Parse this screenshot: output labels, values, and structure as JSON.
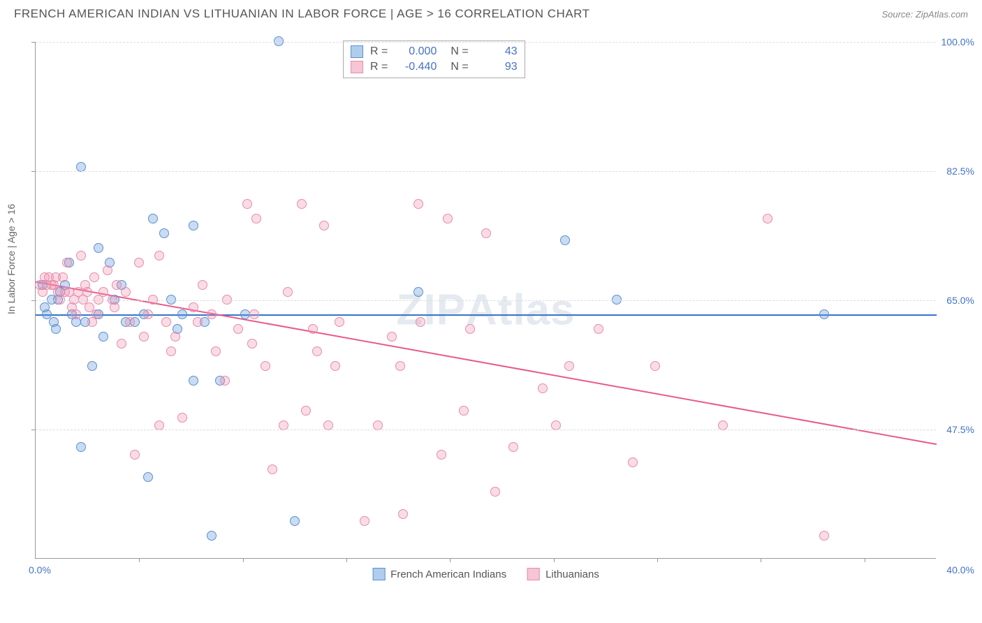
{
  "title": "FRENCH AMERICAN INDIAN VS LITHUANIAN IN LABOR FORCE | AGE > 16 CORRELATION CHART",
  "source": "Source: ZipAtlas.com",
  "watermark_a": "ZIP",
  "watermark_b": "Atlas",
  "chart": {
    "type": "scatter",
    "y_label": "In Labor Force | Age > 16",
    "xlim": [
      0.0,
      40.0
    ],
    "ylim": [
      30.0,
      100.0
    ],
    "x_min_label": "0.0%",
    "x_max_label": "40.0%",
    "y_ticks": [
      47.5,
      65.0,
      82.5,
      100.0
    ],
    "y_tick_labels": [
      "47.5%",
      "65.0%",
      "82.5%",
      "100.0%"
    ],
    "x_tick_positions": [
      4.6,
      9.2,
      13.8,
      18.4,
      23.0,
      27.6,
      32.2,
      36.8
    ],
    "background_color": "#ffffff",
    "grid_color": "#dcdcdc",
    "marker_size": 14,
    "series": [
      {
        "name": "French American Indians",
        "color_fill": "rgba(100,155,220,0.35)",
        "color_stroke": "#5b8fd0",
        "r": "0.000",
        "n": "43",
        "trend": {
          "y_at_xmin": 63.0,
          "y_at_xmax": 63.0,
          "color": "#2f6fc7",
          "width": 2
        },
        "points": [
          [
            0.3,
            67
          ],
          [
            0.4,
            64
          ],
          [
            0.5,
            63
          ],
          [
            0.7,
            65
          ],
          [
            0.8,
            62
          ],
          [
            0.9,
            61
          ],
          [
            1.0,
            65
          ],
          [
            1.1,
            66
          ],
          [
            1.3,
            67
          ],
          [
            1.5,
            70
          ],
          [
            1.6,
            63
          ],
          [
            1.8,
            62
          ],
          [
            2.0,
            83
          ],
          [
            2.0,
            45
          ],
          [
            2.2,
            62
          ],
          [
            2.5,
            56
          ],
          [
            2.8,
            72
          ],
          [
            2.8,
            63
          ],
          [
            3.0,
            60
          ],
          [
            3.3,
            70
          ],
          [
            3.5,
            65
          ],
          [
            3.8,
            67
          ],
          [
            4.0,
            62
          ],
          [
            4.4,
            62
          ],
          [
            4.8,
            63
          ],
          [
            5.0,
            41
          ],
          [
            5.2,
            76
          ],
          [
            5.7,
            74
          ],
          [
            6.0,
            65
          ],
          [
            6.3,
            61
          ],
          [
            6.5,
            63
          ],
          [
            7.0,
            54
          ],
          [
            7.0,
            75
          ],
          [
            7.5,
            62
          ],
          [
            7.8,
            33
          ],
          [
            8.2,
            54
          ],
          [
            9.3,
            63
          ],
          [
            10.8,
            100
          ],
          [
            11.5,
            35
          ],
          [
            17.0,
            66
          ],
          [
            23.5,
            73
          ],
          [
            25.8,
            65
          ],
          [
            35.0,
            63
          ]
        ]
      },
      {
        "name": "Lithuanians",
        "color_fill": "rgba(240,140,170,0.3)",
        "color_stroke": "#e78bac",
        "r": "-0.440",
        "n": "93",
        "trend": {
          "y_at_xmin": 67.5,
          "y_at_xmax": 45.5,
          "color": "#e85a8a",
          "width": 2
        },
        "points": [
          [
            0.2,
            67
          ],
          [
            0.3,
            66
          ],
          [
            0.4,
            68
          ],
          [
            0.5,
            67
          ],
          [
            0.6,
            68
          ],
          [
            0.7,
            67
          ],
          [
            0.8,
            67
          ],
          [
            0.9,
            68
          ],
          [
            1.0,
            66
          ],
          [
            1.1,
            65
          ],
          [
            1.2,
            68
          ],
          [
            1.3,
            66
          ],
          [
            1.4,
            70
          ],
          [
            1.5,
            66
          ],
          [
            1.6,
            64
          ],
          [
            1.7,
            65
          ],
          [
            1.8,
            63
          ],
          [
            1.9,
            66
          ],
          [
            2.0,
            71
          ],
          [
            2.1,
            65
          ],
          [
            2.2,
            67
          ],
          [
            2.3,
            66
          ],
          [
            2.4,
            64
          ],
          [
            2.5,
            62
          ],
          [
            2.6,
            68
          ],
          [
            2.7,
            63
          ],
          [
            2.8,
            65
          ],
          [
            3.0,
            66
          ],
          [
            3.2,
            69
          ],
          [
            3.4,
            65
          ],
          [
            3.5,
            64
          ],
          [
            3.6,
            67
          ],
          [
            3.8,
            59
          ],
          [
            4.0,
            66
          ],
          [
            4.2,
            62
          ],
          [
            4.4,
            44
          ],
          [
            4.6,
            70
          ],
          [
            4.8,
            60
          ],
          [
            5.0,
            63
          ],
          [
            5.2,
            65
          ],
          [
            5.5,
            48
          ],
          [
            5.5,
            71
          ],
          [
            5.8,
            62
          ],
          [
            6.0,
            58
          ],
          [
            6.2,
            60
          ],
          [
            6.5,
            49
          ],
          [
            7.0,
            64
          ],
          [
            7.2,
            62
          ],
          [
            7.4,
            67
          ],
          [
            7.8,
            63
          ],
          [
            8.0,
            58
          ],
          [
            8.4,
            54
          ],
          [
            8.5,
            65
          ],
          [
            9.0,
            61
          ],
          [
            9.4,
            78
          ],
          [
            9.6,
            59
          ],
          [
            9.7,
            63
          ],
          [
            9.8,
            76
          ],
          [
            10.2,
            56
          ],
          [
            10.5,
            42
          ],
          [
            11.0,
            48
          ],
          [
            11.2,
            66
          ],
          [
            11.8,
            78
          ],
          [
            12.0,
            50
          ],
          [
            12.3,
            61
          ],
          [
            12.5,
            58
          ],
          [
            12.8,
            75
          ],
          [
            13.0,
            48
          ],
          [
            13.3,
            56
          ],
          [
            13.5,
            62
          ],
          [
            14.6,
            35
          ],
          [
            15.2,
            48
          ],
          [
            15.8,
            60
          ],
          [
            16.2,
            56
          ],
          [
            16.3,
            36
          ],
          [
            17.0,
            78
          ],
          [
            17.1,
            62
          ],
          [
            18.0,
            44
          ],
          [
            18.3,
            76
          ],
          [
            19.0,
            50
          ],
          [
            19.3,
            61
          ],
          [
            20.0,
            74
          ],
          [
            20.4,
            39
          ],
          [
            21.2,
            45
          ],
          [
            22.5,
            53
          ],
          [
            23.1,
            48
          ],
          [
            23.7,
            56
          ],
          [
            25.0,
            61
          ],
          [
            26.5,
            43
          ],
          [
            27.5,
            56
          ],
          [
            30.5,
            48
          ],
          [
            32.5,
            76
          ],
          [
            35.0,
            33
          ]
        ]
      }
    ],
    "legend_top": {
      "r_label": "R =",
      "n_label": "N ="
    },
    "legend_bottom_labels": [
      "French American Indians",
      "Lithuanians"
    ]
  }
}
